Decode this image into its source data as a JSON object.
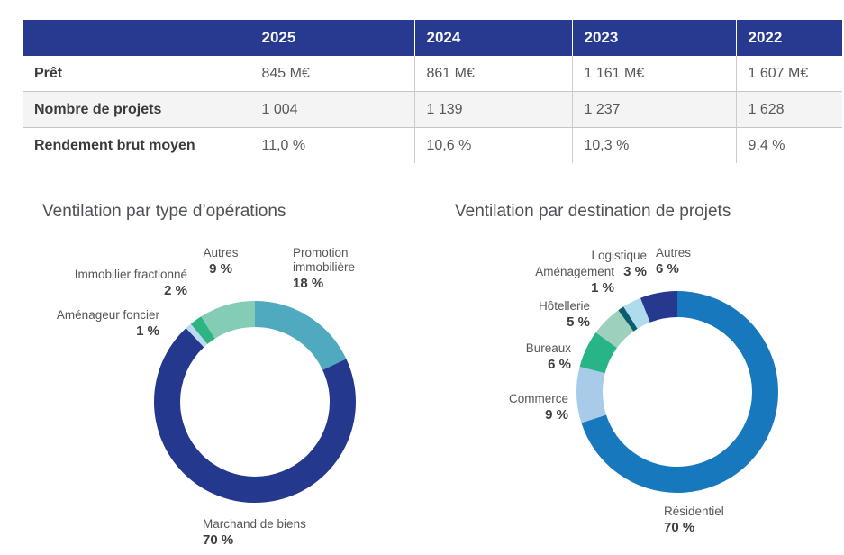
{
  "table": {
    "columns": [
      "",
      "2025",
      "2024",
      "2023",
      "2022"
    ],
    "rows": [
      {
        "label": "Prêt",
        "values": [
          "845 M€",
          "861 M€",
          "1 161 M€",
          "1 607 M€"
        ]
      },
      {
        "label": "Nombre de projets",
        "values": [
          "1 004",
          "1 139",
          "1 237",
          "1 628"
        ]
      },
      {
        "label": "Rendement brut moyen",
        "values": [
          "11,0 %",
          "10,6 %",
          "10,3 %",
          "9,4 %"
        ]
      }
    ],
    "header_bg": "#283A8F"
  },
  "chart_data": [
    {
      "type": "pie",
      "variant": "donut",
      "title": "Ventilation par type d’opérations",
      "slices": [
        {
          "label": "Promotion immobilière",
          "value": 18,
          "pct": "18 %",
          "color": "#4FA9BF"
        },
        {
          "label": "Marchand de biens",
          "value": 70,
          "pct": "70 %",
          "color": "#24388D"
        },
        {
          "label": "Aménageur foncier",
          "value": 1,
          "pct": "1 %",
          "color": "#BDD9F2"
        },
        {
          "label": "Immobilier fractionné",
          "value": 2,
          "pct": "2 %",
          "color": "#2DB483"
        },
        {
          "label": "Autres",
          "value": 9,
          "pct": "9 %",
          "color": "#85CCB7"
        }
      ],
      "start_angle_deg": 0,
      "direction": "clockwise",
      "legend_position": "around"
    },
    {
      "type": "pie",
      "variant": "donut",
      "title": "Ventilation par destination de projets",
      "slices": [
        {
          "label": "Résidentiel",
          "value": 70,
          "pct": "70 %",
          "color": "#1878BE"
        },
        {
          "label": "Commerce",
          "value": 9,
          "pct": "9 %",
          "color": "#A8CBEA"
        },
        {
          "label": "Bureaux",
          "value": 6,
          "pct": "6 %",
          "color": "#27B487"
        },
        {
          "label": "Hôtellerie",
          "value": 5,
          "pct": "5 %",
          "color": "#9ED0BE"
        },
        {
          "label": "Aménagement",
          "value": 1,
          "pct": "1 %",
          "color": "#0B5E6D"
        },
        {
          "label": "Logistique",
          "value": 3,
          "pct": "3 %",
          "color": "#AEDCEC"
        },
        {
          "label": "Autres",
          "value": 6,
          "pct": "6 %",
          "color": "#27388F"
        }
      ],
      "start_angle_deg": 0,
      "direction": "clockwise",
      "legend_position": "around"
    }
  ]
}
